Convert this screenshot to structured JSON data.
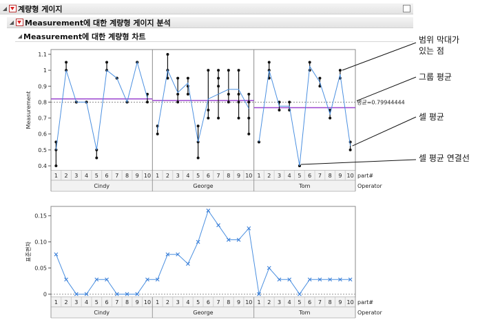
{
  "headers": {
    "h1": "계량형 게이지",
    "h2": "Measurement에 대한 계량형 게이지 분석",
    "h3": "Measurement에 대한 계량형 차트"
  },
  "top_chart": {
    "ylabel": "Measurement",
    "yticks": [
      "0.4",
      "0.5",
      "0.6",
      "0.7",
      "0.8",
      "0.9",
      "1",
      "1.1"
    ],
    "ylim": [
      0.37,
      1.13
    ],
    "grand_mean": 0.79944444,
    "grand_mean_label": "평균=0.79944444",
    "group_means": [
      0.82,
      0.81,
      0.765
    ],
    "grand_mean_color": "#9b44cf"
  },
  "bottom_chart": {
    "ylabel": "표준편차",
    "yticks": [
      "0",
      "0.05",
      "0.10",
      "0.15"
    ],
    "ylim": [
      -0.006,
      0.168
    ]
  },
  "axis": {
    "part_label": "part#",
    "operator_label": "Operator",
    "parts": [
      "1",
      "2",
      "3",
      "4",
      "5",
      "6",
      "7",
      "8",
      "9",
      "10"
    ],
    "operators": [
      "Cindy",
      "George",
      "Tom"
    ]
  },
  "annotations": {
    "range_bars": "범위 막대가\n있는 점",
    "group_mean": "그룹 평균",
    "cell_mean": "셀 평균",
    "cell_mean_line": "셀 평균 연결선"
  },
  "chart_data": [
    {
      "type": "line",
      "title": "",
      "ylabel": "Measurement",
      "xlabel": "part# / Operator",
      "ylim": [
        0.4,
        1.1
      ],
      "groups": [
        "Cindy",
        "George",
        "Tom"
      ],
      "parts": [
        1,
        2,
        3,
        4,
        5,
        6,
        7,
        8,
        9,
        10
      ],
      "measurements": [
        [
          [
            0.4,
            0.5,
            0.55
          ],
          [
            1.0,
            1.05
          ],
          [
            0.8,
            0.8
          ],
          [
            0.8,
            0.8
          ],
          [
            0.45,
            0.5
          ],
          [
            1.0,
            1.05
          ],
          [
            0.95,
            0.95
          ],
          [
            0.8,
            0.8
          ],
          [
            1.05,
            1.05
          ],
          [
            0.8,
            0.85
          ]
        ],
        [
          [
            0.6,
            0.65
          ],
          [
            0.95,
            1.0,
            1.1
          ],
          [
            0.8,
            0.85,
            0.95
          ],
          [
            0.85,
            0.9,
            0.95
          ],
          [
            0.45,
            0.55,
            0.65
          ],
          [
            0.7,
            0.75,
            1.0
          ],
          [
            0.7,
            0.9,
            0.95,
            1.0
          ],
          [
            0.8,
            0.85,
            1.0
          ],
          [
            0.7,
            0.8,
            0.85,
            1.0
          ],
          [
            0.6,
            0.7,
            0.8,
            0.85
          ]
        ],
        [
          [
            0.55,
            0.55
          ],
          [
            0.95,
            1.0,
            1.05
          ],
          [
            0.75,
            0.8
          ],
          [
            0.75,
            0.8
          ],
          [
            0.4,
            0.4
          ],
          [
            1.0,
            1.05
          ],
          [
            0.9,
            0.95
          ],
          [
            0.7,
            0.75
          ],
          [
            0.95,
            1.0
          ],
          [
            0.5,
            0.55
          ]
        ]
      ],
      "cell_means": [
        [
          0.5,
          1.0,
          0.8,
          0.8,
          0.5,
          1.0,
          0.95,
          0.8,
          1.05,
          0.825
        ],
        [
          0.625,
          1.0,
          0.86,
          0.92,
          0.55,
          0.82,
          0.85,
          0.88,
          0.88,
          0.76
        ],
        [
          0.55,
          1.0,
          0.775,
          0.775,
          0.4,
          1.025,
          0.925,
          0.725,
          0.975,
          0.525
        ]
      ],
      "grand_mean": 0.79944444,
      "group_means": [
        0.82,
        0.81,
        0.765
      ]
    },
    {
      "type": "line",
      "title": "",
      "ylabel": "표준편차",
      "xlabel": "part# / Operator",
      "ylim": [
        0,
        0.15
      ],
      "groups": [
        "Cindy",
        "George",
        "Tom"
      ],
      "parts": [
        1,
        2,
        3,
        4,
        5,
        6,
        7,
        8,
        9,
        10
      ],
      "series": [
        {
          "name": "Cindy",
          "values": [
            0.076,
            0.028,
            0,
            0,
            0.028,
            0.028,
            0,
            0,
            0,
            0.028
          ]
        },
        {
          "name": "George",
          "values": [
            0.028,
            0.076,
            0.076,
            0.058,
            0.1,
            0.16,
            0.132,
            0.104,
            0.104,
            0.126
          ]
        },
        {
          "name": "Tom",
          "values": [
            0,
            0.05,
            0.028,
            0.028,
            0,
            0.028,
            0.028,
            0.028,
            0.028,
            0.028
          ]
        }
      ]
    }
  ]
}
